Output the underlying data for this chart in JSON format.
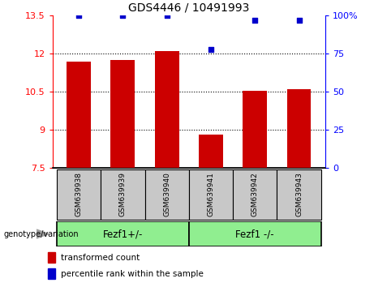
{
  "title": "GDS4446 / 10491993",
  "samples": [
    "GSM639938",
    "GSM639939",
    "GSM639940",
    "GSM639941",
    "GSM639942",
    "GSM639943"
  ],
  "bar_values": [
    11.7,
    11.75,
    12.1,
    8.8,
    10.55,
    10.6
  ],
  "percentile_values": [
    100,
    100,
    100,
    78,
    97,
    97
  ],
  "bar_color": "#CC0000",
  "dot_color": "#0000CC",
  "ylim_left": [
    7.5,
    13.5
  ],
  "ylim_right": [
    0,
    100
  ],
  "yticks_left": [
    7.5,
    9,
    10.5,
    12,
    13.5
  ],
  "yticks_right": [
    0,
    25,
    50,
    75,
    100
  ],
  "ytick_labels_left": [
    "7.5",
    "9",
    "10.5",
    "12",
    "13.5"
  ],
  "ytick_labels_right": [
    "0",
    "25",
    "50",
    "75",
    "100%"
  ],
  "hlines": [
    9,
    10.5,
    12
  ],
  "group0_label": "Fezf1+/-",
  "group1_label": "Fezf1 -/-",
  "group_row_label": "genotype/variation",
  "legend_items": [
    {
      "label": "transformed count",
      "color": "#CC0000"
    },
    {
      "label": "percentile rank within the sample",
      "color": "#0000CC"
    }
  ],
  "bar_width": 0.55,
  "bg_plot": "#FFFFFF",
  "bg_sample_row": "#C8C8C8",
  "bg_group_row": "#90EE90",
  "fig_width": 4.61,
  "fig_height": 3.54,
  "dpi": 100
}
